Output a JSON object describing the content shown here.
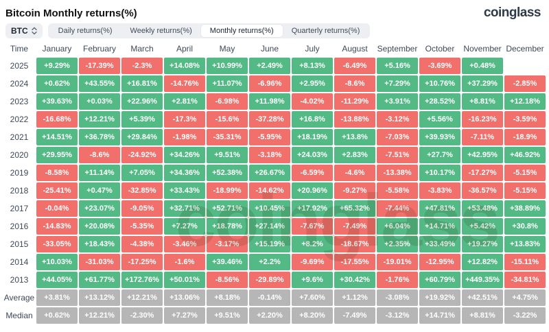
{
  "header": {
    "title": "Bitcoin Monthly returns(%)",
    "logo_text": "coinglass"
  },
  "toolbar": {
    "symbol_selector": {
      "label": "BTC"
    },
    "tabs": [
      {
        "label": "Daily returns(%)",
        "active": false
      },
      {
        "label": "Weekly returns(%)",
        "active": false
      },
      {
        "label": "Monthly returns(%)",
        "active": true
      },
      {
        "label": "Quarterly returns(%)",
        "active": false
      }
    ]
  },
  "watermark": "coinglass",
  "colors": {
    "positive": "#54ba85",
    "negative": "#f1706b",
    "neutral": "#b6b6b6",
    "label_text": "#3d4858"
  },
  "chart_data": {
    "type": "heatmap",
    "title": "Bitcoin Monthly returns(%)",
    "columns": [
      "Time",
      "January",
      "February",
      "March",
      "April",
      "May",
      "June",
      "July",
      "August",
      "September",
      "October",
      "November",
      "December"
    ],
    "rows": [
      {
        "time": "2025",
        "neutral": false,
        "values": [
          "+9.29%",
          "-17.39%",
          "-2.3%",
          "+14.08%",
          "+10.99%",
          "+2.49%",
          "+8.13%",
          "-6.49%",
          "+5.16%",
          "-3.69%",
          "+0.48%",
          ""
        ]
      },
      {
        "time": "2024",
        "neutral": false,
        "values": [
          "+0.62%",
          "+43.55%",
          "+16.81%",
          "-14.76%",
          "+11.07%",
          "-6.96%",
          "+2.95%",
          "-8.6%",
          "+7.29%",
          "+10.76%",
          "+37.29%",
          "-2.85%"
        ]
      },
      {
        "time": "2023",
        "neutral": false,
        "values": [
          "+39.63%",
          "+0.03%",
          "+22.96%",
          "+2.81%",
          "-6.98%",
          "+11.98%",
          "-4.02%",
          "-11.29%",
          "+3.91%",
          "+28.52%",
          "+8.81%",
          "+12.18%"
        ]
      },
      {
        "time": "2022",
        "neutral": false,
        "values": [
          "-16.68%",
          "+12.21%",
          "+5.39%",
          "-17.3%",
          "-15.6%",
          "-37.28%",
          "+16.8%",
          "-13.88%",
          "-3.12%",
          "+5.56%",
          "-16.23%",
          "-3.59%"
        ]
      },
      {
        "time": "2021",
        "neutral": false,
        "values": [
          "+14.51%",
          "+36.78%",
          "+29.84%",
          "-1.98%",
          "-35.31%",
          "-5.95%",
          "+18.19%",
          "+13.8%",
          "-7.03%",
          "+39.93%",
          "-7.11%",
          "-18.9%"
        ]
      },
      {
        "time": "2020",
        "neutral": false,
        "values": [
          "+29.95%",
          "-8.6%",
          "-24.92%",
          "+34.26%",
          "+9.51%",
          "-3.18%",
          "+24.03%",
          "+2.83%",
          "-7.51%",
          "+27.7%",
          "+42.95%",
          "+46.92%"
        ]
      },
      {
        "time": "2019",
        "neutral": false,
        "values": [
          "-8.58%",
          "+11.14%",
          "+7.05%",
          "+34.36%",
          "+52.38%",
          "+26.67%",
          "-6.59%",
          "-4.6%",
          "-13.38%",
          "+10.17%",
          "-17.27%",
          "-5.15%"
        ]
      },
      {
        "time": "2018",
        "neutral": false,
        "values": [
          "-25.41%",
          "+0.47%",
          "-32.85%",
          "+33.43%",
          "-18.99%",
          "-14.62%",
          "+20.96%",
          "-9.27%",
          "-5.58%",
          "-3.83%",
          "-36.57%",
          "-5.15%"
        ]
      },
      {
        "time": "2017",
        "neutral": false,
        "values": [
          "-0.04%",
          "+23.07%",
          "-9.05%",
          "+32.71%",
          "+52.71%",
          "+10.45%",
          "+17.92%",
          "+65.32%",
          "-7.44%",
          "+47.81%",
          "+53.48%",
          "+38.89%"
        ]
      },
      {
        "time": "2016",
        "neutral": false,
        "values": [
          "-14.83%",
          "+20.08%",
          "-5.35%",
          "+7.27%",
          "+18.78%",
          "+27.14%",
          "-7.67%",
          "-7.49%",
          "+6.04%",
          "+14.71%",
          "+5.42%",
          "+30.8%"
        ]
      },
      {
        "time": "2015",
        "neutral": false,
        "values": [
          "-33.05%",
          "+18.43%",
          "-4.38%",
          "-3.46%",
          "-3.17%",
          "+15.19%",
          "+8.2%",
          "-18.67%",
          "+2.35%",
          "+33.49%",
          "+19.27%",
          "+13.83%"
        ]
      },
      {
        "time": "2014",
        "neutral": false,
        "values": [
          "+10.03%",
          "-31.03%",
          "-17.25%",
          "-1.6%",
          "+39.46%",
          "+2.2%",
          "-9.69%",
          "-17.55%",
          "-19.01%",
          "-12.95%",
          "+12.82%",
          "-15.11%"
        ]
      },
      {
        "time": "2013",
        "neutral": false,
        "values": [
          "+44.05%",
          "+61.77%",
          "+172.76%",
          "+50.01%",
          "-8.56%",
          "-29.89%",
          "+9.6%",
          "+30.42%",
          "-1.76%",
          "+60.79%",
          "+449.35%",
          "-34.81%"
        ]
      },
      {
        "time": "Average",
        "neutral": true,
        "values": [
          "+3.81%",
          "+13.12%",
          "+12.21%",
          "+13.06%",
          "+8.18%",
          "-0.14%",
          "+7.60%",
          "+1.12%",
          "-3.08%",
          "+19.92%",
          "+42.51%",
          "+4.75%"
        ]
      },
      {
        "time": "Median",
        "neutral": true,
        "values": [
          "+0.62%",
          "+12.21%",
          "-2.30%",
          "+7.27%",
          "+9.51%",
          "+2.20%",
          "+8.20%",
          "-7.49%",
          "-3.12%",
          "+14.71%",
          "+8.81%",
          "-3.22%"
        ]
      }
    ]
  }
}
